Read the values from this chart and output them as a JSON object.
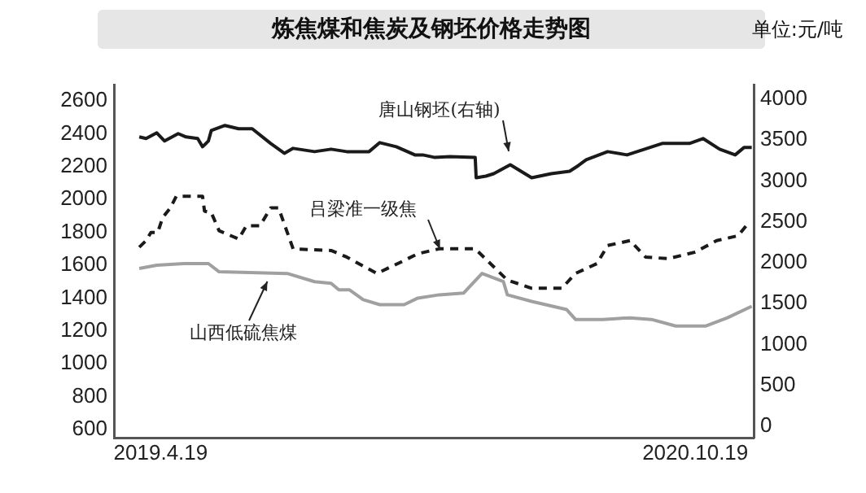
{
  "chart_data": {
    "type": "line",
    "title": "炼焦煤和焦炭及钢坯价格走势图",
    "subtitle": "单位:元/吨",
    "grid": false,
    "legend": false,
    "marker": "none",
    "xlim": [
      "2019-03-02",
      "2020-12-18"
    ],
    "xticks": [
      {
        "value": "2019-04-19",
        "label": "2019.4.19"
      },
      {
        "value": "2020-10-19",
        "label": "2020.10.19"
      }
    ],
    "ylim": [
      550,
      2700
    ],
    "yticks": [
      600,
      800,
      1000,
      1200,
      1400,
      1600,
      1800,
      2000,
      2200,
      2400,
      2600
    ],
    "y2lim": [
      -140,
      4180
    ],
    "y2ticks": [
      0,
      500,
      1000,
      1500,
      2000,
      2500,
      3000,
      3500,
      4000
    ],
    "series": [
      {
        "axis": "y2",
        "color": "#1a1a1a",
        "line_style": "solid",
        "x": [
          "2019-03-28",
          "2019-04-04",
          "2019-04-15",
          "2019-04-23",
          "2019-05-07",
          "2019-05-15",
          "2019-05-27",
          "2019-06-01",
          "2019-06-07",
          "2019-06-10",
          "2019-06-24",
          "2019-07-08",
          "2019-07-22",
          "2019-08-10",
          "2019-08-24",
          "2019-09-02",
          "2019-09-24",
          "2019-10-11",
          "2019-10-27",
          "2019-11-19",
          "2019-11-30",
          "2019-12-17",
          "2020-01-05",
          "2020-01-13",
          "2020-01-25",
          "2020-02-10",
          "2020-03-07",
          "2020-03-08",
          "2020-03-18",
          "2020-03-26",
          "2020-04-12",
          "2020-05-04",
          "2020-05-24",
          "2020-06-12",
          "2020-06-21",
          "2020-06-29",
          "2020-07-21",
          "2020-08-10",
          "2020-09-15",
          "2020-10-13",
          "2020-10-27",
          "2020-11-13",
          "2020-11-29",
          "2020-12-08",
          "2020-12-16"
        ],
        "values": [
          3540,
          3520,
          3590,
          3490,
          3580,
          3540,
          3520,
          3420,
          3490,
          3620,
          3680,
          3640,
          3640,
          3460,
          3340,
          3400,
          3360,
          3390,
          3360,
          3360,
          3470,
          3420,
          3320,
          3320,
          3290,
          3300,
          3290,
          3040,
          3060,
          3090,
          3200,
          3040,
          3090,
          3120,
          3190,
          3260,
          3360,
          3320,
          3460,
          3460,
          3520,
          3390,
          3320,
          3410,
          3410
        ]
      },
      {
        "color": "#1a1a1a",
        "line_style": "dashed",
        "x": [
          "2019-03-28",
          "2019-04-04",
          "2019-04-09",
          "2019-04-16",
          "2019-04-21",
          "2019-04-29",
          "2019-05-05",
          "2019-05-15",
          "2019-06-01",
          "2019-06-03",
          "2019-06-10",
          "2019-06-18",
          "2019-07-08",
          "2019-07-16",
          "2019-07-30",
          "2019-08-10",
          "2019-08-18",
          "2019-09-02",
          "2019-10-11",
          "2019-10-27",
          "2019-11-27",
          "2019-12-22",
          "2020-01-08",
          "2020-01-30",
          "2020-03-07",
          "2020-04-09",
          "2020-05-04",
          "2020-06-04",
          "2020-06-18",
          "2020-07-10",
          "2020-07-21",
          "2020-08-13",
          "2020-08-29",
          "2020-09-21",
          "2020-10-19",
          "2020-11-10",
          "2020-12-02",
          "2020-12-13"
        ],
        "values": [
          1710,
          1750,
          1800,
          1800,
          1890,
          1950,
          2020,
          2020,
          2020,
          1930,
          1920,
          1810,
          1760,
          1840,
          1840,
          1950,
          1950,
          1700,
          1690,
          1650,
          1550,
          1620,
          1670,
          1700,
          1700,
          1510,
          1460,
          1460,
          1550,
          1610,
          1720,
          1750,
          1650,
          1640,
          1680,
          1750,
          1780,
          1860
        ]
      },
      {
        "color": "#a0a0a0",
        "line_style": "solid",
        "x": [
          "2019-03-28",
          "2019-04-15",
          "2019-05-13",
          "2019-06-07",
          "2019-06-18",
          "2019-08-27",
          "2019-09-24",
          "2019-10-11",
          "2019-10-19",
          "2019-10-30",
          "2019-11-13",
          "2019-11-30",
          "2019-12-25",
          "2020-01-08",
          "2020-01-30",
          "2020-02-24",
          "2020-03-14",
          "2020-04-05",
          "2020-04-09",
          "2020-05-04",
          "2020-06-09",
          "2020-06-18",
          "2020-07-16",
          "2020-08-13",
          "2020-09-04",
          "2020-09-29",
          "2020-10-30",
          "2020-11-21",
          "2020-12-16"
        ],
        "values": [
          1580,
          1600,
          1610,
          1610,
          1560,
          1550,
          1500,
          1490,
          1450,
          1450,
          1390,
          1360,
          1360,
          1400,
          1420,
          1430,
          1550,
          1500,
          1420,
          1380,
          1330,
          1270,
          1270,
          1280,
          1270,
          1230,
          1230,
          1280,
          1350
        ]
      }
    ],
    "annotations": [
      "唐山钢坯(右轴)",
      {
        "text": "吕梁准一级焦",
        "x": "2020-01-30",
        "y": 1700
      },
      {
        "text": "山西低硫焦煤",
        "x": "2019-08-07",
        "y": 1500
      }
    ]
  }
}
